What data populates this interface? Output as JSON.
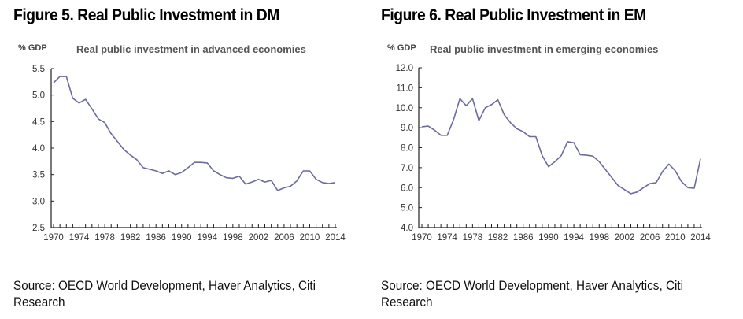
{
  "figures": [
    {
      "title": "Figure 5. Real Public Investment in DM",
      "unit_label": "% GDP",
      "source": "Source: OECD World Development, Haver Analytics, Citi Research"
    },
    {
      "title": "Figure 6. Real Public Investment in EM",
      "unit_label": "% GDP",
      "source": "Source: OECD World Development, Haver Analytics, Citi Research"
    }
  ],
  "colors": {
    "line": "#6B6B9F",
    "axis": "#222222",
    "text": "#333333"
  },
  "chart_data": [
    {
      "type": "line",
      "title": "Real public investment in advanced economies",
      "xlabel": "",
      "ylabel": "% GDP",
      "ylim": [
        2.5,
        5.5
      ],
      "yticks": [
        "2.5",
        "3.0",
        "3.5",
        "4.0",
        "4.5",
        "5.0",
        "5.5"
      ],
      "xlim": [
        1970,
        2014
      ],
      "xticks": [
        "1970",
        "1974",
        "1978",
        "1982",
        "1986",
        "1990",
        "1994",
        "1998",
        "2002",
        "2006",
        "2010",
        "2014"
      ],
      "grid": false,
      "series": [
        {
          "name": "Real public investment in advanced economies",
          "x": [
            1970,
            1971,
            1972,
            1973,
            1974,
            1975,
            1976,
            1977,
            1978,
            1979,
            1980,
            1981,
            1982,
            1983,
            1984,
            1985,
            1986,
            1987,
            1988,
            1989,
            1990,
            1991,
            1992,
            1993,
            1994,
            1995,
            1996,
            1997,
            1998,
            1999,
            2000,
            2001,
            2002,
            2003,
            2004,
            2005,
            2006,
            2007,
            2008,
            2009,
            2010,
            2011,
            2012,
            2013,
            2014
          ],
          "values": [
            5.23,
            5.35,
            5.35,
            4.94,
            4.85,
            4.92,
            4.74,
            4.55,
            4.48,
            4.27,
            4.12,
            3.97,
            3.87,
            3.78,
            3.63,
            3.6,
            3.57,
            3.52,
            3.57,
            3.5,
            3.54,
            3.63,
            3.73,
            3.73,
            3.72,
            3.57,
            3.5,
            3.44,
            3.43,
            3.47,
            3.32,
            3.36,
            3.41,
            3.36,
            3.39,
            3.2,
            3.25,
            3.28,
            3.38,
            3.57,
            3.57,
            3.41,
            3.35,
            3.33,
            3.35
          ]
        }
      ]
    },
    {
      "type": "line",
      "title": "Real public investment in emerging economies",
      "xlabel": "",
      "ylabel": "% GDP",
      "ylim": [
        4.0,
        12.0
      ],
      "yticks": [
        "4.0",
        "5.0",
        "6.0",
        "7.0",
        "8.0",
        "9.0",
        "10.0",
        "11.0",
        "12.0"
      ],
      "xlim": [
        1970,
        2014
      ],
      "xticks": [
        "1970",
        "1974",
        "1978",
        "1982",
        "1986",
        "1990",
        "1994",
        "1998",
        "2002",
        "2006",
        "2010",
        "2014"
      ],
      "grid": false,
      "series": [
        {
          "name": "Real public investment in emerging economies",
          "x": [
            1970,
            1971,
            1972,
            1973,
            1974,
            1975,
            1976,
            1977,
            1978,
            1979,
            1980,
            1981,
            1982,
            1983,
            1984,
            1985,
            1986,
            1987,
            1988,
            1989,
            1990,
            1991,
            1992,
            1993,
            1994,
            1995,
            1996,
            1997,
            1998,
            1999,
            2000,
            2001,
            2002,
            2003,
            2004,
            2005,
            2006,
            2007,
            2008,
            2009,
            2010,
            2011,
            2012,
            2013,
            2014
          ],
          "values": [
            9.05,
            9.08,
            8.88,
            8.62,
            8.62,
            9.4,
            10.45,
            10.1,
            10.45,
            9.35,
            10.0,
            10.15,
            10.4,
            9.65,
            9.25,
            8.95,
            8.8,
            8.55,
            8.55,
            7.6,
            7.05,
            7.3,
            7.6,
            8.3,
            8.25,
            7.65,
            7.62,
            7.58,
            7.3,
            6.9,
            6.5,
            6.1,
            5.9,
            5.7,
            5.78,
            6.0,
            6.2,
            6.25,
            6.8,
            7.18,
            6.85,
            6.3,
            6.0,
            5.97,
            7.45
          ]
        }
      ]
    }
  ]
}
